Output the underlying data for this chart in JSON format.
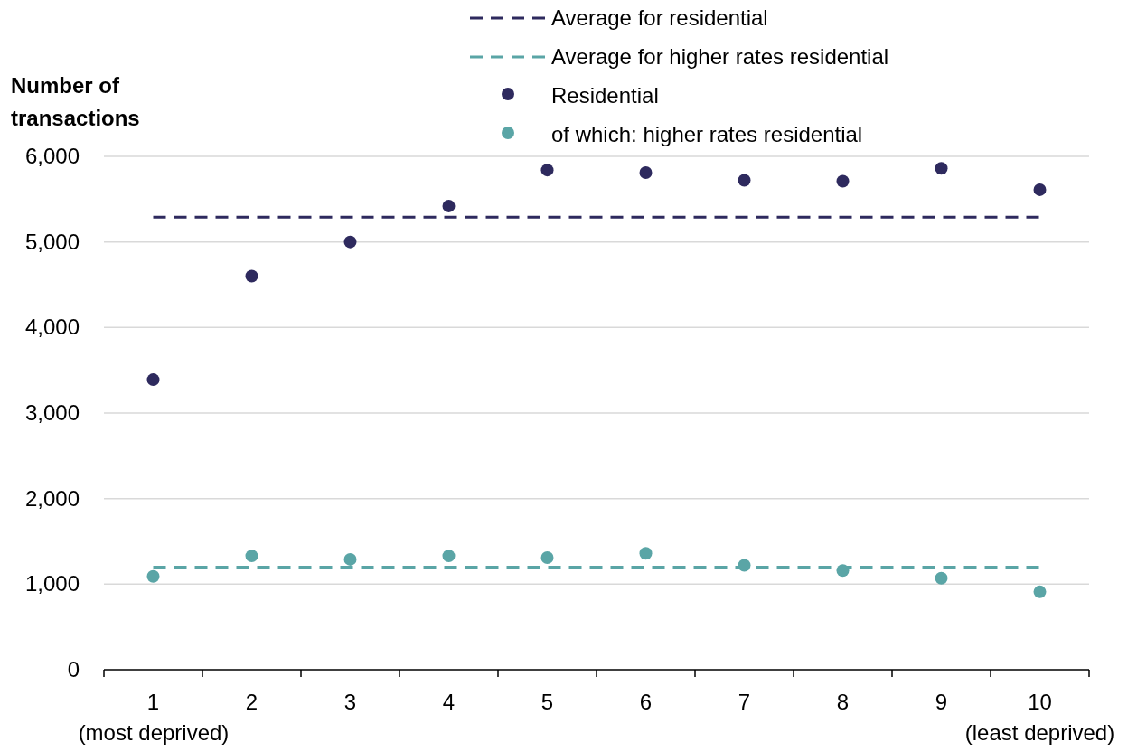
{
  "chart_data": {
    "type": "scatter",
    "ylabel": "Number of transactions",
    "categories": [
      "1\n(most deprived)",
      "2",
      "3",
      "4",
      "5",
      "6",
      "7",
      "8",
      "9",
      "10\n(least deprived)"
    ],
    "ylim": [
      0,
      6000
    ],
    "yticks": [
      {
        "value": 0,
        "label": "0"
      },
      {
        "value": 1000,
        "label": "1,000"
      },
      {
        "value": 2000,
        "label": "2,000"
      },
      {
        "value": 3000,
        "label": "3,000"
      },
      {
        "value": 4000,
        "label": "4,000"
      },
      {
        "value": 5000,
        "label": "5,000"
      },
      {
        "value": 6000,
        "label": "6,000"
      }
    ],
    "grid": "y",
    "legend": "top",
    "marker": "circle",
    "series": [
      {
        "name": "Average for residential",
        "type": "line",
        "marker": "none",
        "line_style": "dashed",
        "color": "#2e2a5e",
        "values": [
          5290,
          5290,
          5290,
          5290,
          5290,
          5290,
          5290,
          5290,
          5290,
          5290
        ]
      },
      {
        "name": "Average for higher rates residential",
        "type": "line",
        "marker": "none",
        "line_style": "dashed",
        "color": "#5aa5a6",
        "values": [
          1200,
          1200,
          1200,
          1200,
          1200,
          1200,
          1200,
          1200,
          1200,
          1200
        ]
      },
      {
        "name": "Residential",
        "color": "#2e2a5e",
        "values": [
          3390,
          4600,
          5000,
          5420,
          5840,
          5810,
          5720,
          5710,
          5860,
          5610
        ]
      },
      {
        "name": "of which: higher rates residential",
        "color": "#5aa5a6",
        "values": [
          1090,
          1330,
          1290,
          1330,
          1310,
          1360,
          1220,
          1160,
          1070,
          910
        ]
      }
    ]
  }
}
